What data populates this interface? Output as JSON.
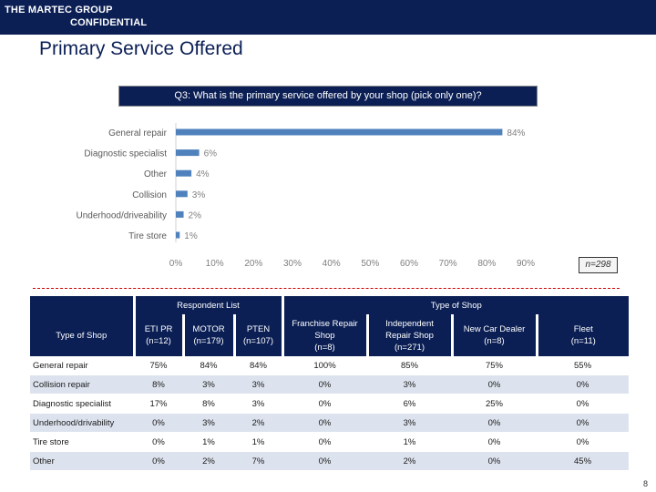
{
  "header": {
    "company_line1": "THE MARTEC GROUP",
    "company_line2": "CONFIDENTIAL"
  },
  "page": {
    "title": "Primary Service Offered",
    "page_number": "8"
  },
  "question": "Q3: What is the primary service offered by your shop (pick only one)?",
  "chart_data": {
    "type": "bar",
    "orientation": "horizontal",
    "title": "Q3: What is the primary service offered by your shop (pick only one)?",
    "categories": [
      "General repair",
      "Diagnostic specialist",
      "Other",
      "Collision",
      "Underhood/driveability",
      "Tire store"
    ],
    "values": [
      84,
      6,
      4,
      3,
      2,
      1
    ],
    "value_labels": [
      "84%",
      "6%",
      "4%",
      "3%",
      "2%",
      "1%"
    ],
    "xlim": [
      0,
      90
    ],
    "xticks": [
      0,
      10,
      20,
      30,
      40,
      50,
      60,
      70,
      80,
      90
    ],
    "xtick_labels": [
      "0%",
      "10%",
      "20%",
      "30%",
      "40%",
      "50%",
      "60%",
      "70%",
      "80%",
      "90%"
    ],
    "bar_color": "#4f81bd",
    "sample_note": "n=298"
  },
  "table": {
    "corner_label": "Type of Shop",
    "groups": [
      "Respondent List",
      "Type of Shop"
    ],
    "columns": [
      [
        "ETI PR",
        "(n=12)"
      ],
      [
        "MOTOR",
        "(n=179)"
      ],
      [
        "PTEN",
        "(n=107)"
      ],
      [
        "Franchise Repair",
        "Shop",
        "(n=8)"
      ],
      [
        "Independent",
        "Repair Shop",
        "(n=271)"
      ],
      [
        "New Car Dealer",
        "(n=8)"
      ],
      [
        "Fleet",
        "(n=11)"
      ]
    ],
    "rows": [
      {
        "label": "General repair",
        "values": [
          "75%",
          "84%",
          "84%",
          "100%",
          "85%",
          "75%",
          "55%"
        ]
      },
      {
        "label": "Collision repair",
        "values": [
          "8%",
          "3%",
          "3%",
          "0%",
          "3%",
          "0%",
          "0%"
        ]
      },
      {
        "label": "Diagnostic specialist",
        "values": [
          "17%",
          "8%",
          "3%",
          "0%",
          "6%",
          "25%",
          "0%"
        ]
      },
      {
        "label": "Underhood/drivability",
        "values": [
          "0%",
          "3%",
          "2%",
          "0%",
          "3%",
          "0%",
          "0%"
        ]
      },
      {
        "label": "Tire store",
        "values": [
          "0%",
          "1%",
          "1%",
          "0%",
          "1%",
          "0%",
          "0%"
        ]
      },
      {
        "label": "Other",
        "values": [
          "0%",
          "2%",
          "7%",
          "0%",
          "2%",
          "0%",
          "45%"
        ]
      }
    ]
  },
  "colors": {
    "navy": "#0b1f55",
    "bar": "#4f81bd",
    "dashed_rule": "#cc0000",
    "row_stripe": "#dde3ee"
  }
}
